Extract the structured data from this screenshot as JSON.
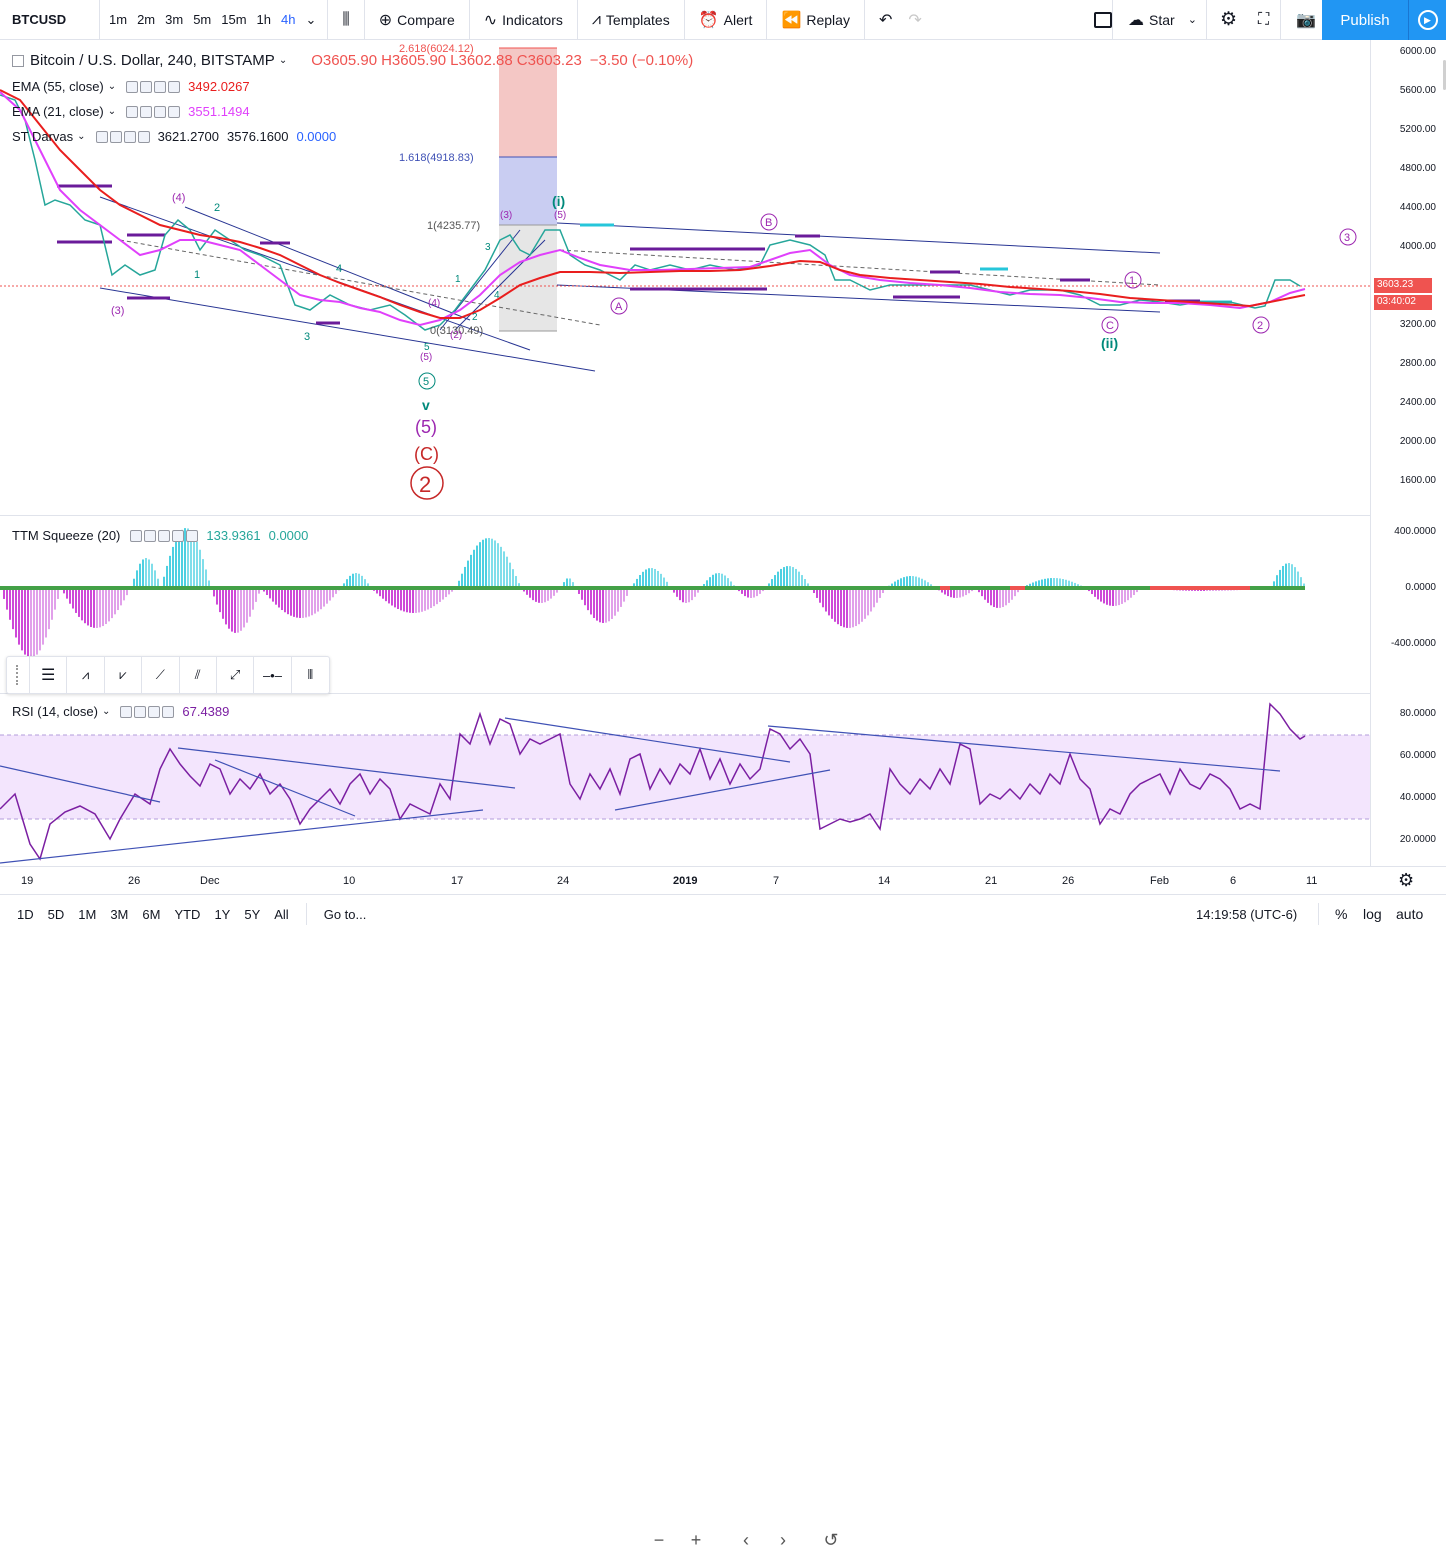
{
  "toolbar": {
    "symbol": "BTCUSD",
    "timeframes": [
      "1m",
      "2m",
      "3m",
      "5m",
      "15m",
      "1h",
      "4h"
    ],
    "active_timeframe": "4h",
    "compare": "Compare",
    "indicators": "Indicators",
    "templates": "Templates",
    "alert": "Alert",
    "replay": "Replay",
    "star": "Star",
    "publish": "Publish"
  },
  "main_legend": {
    "title": "Bitcoin / U.S. Dollar, 240, BITSTAMP",
    "open": "O3605.90",
    "high": "H3605.90",
    "low": "L3602.88",
    "close": "C3603.23",
    "change": "−3.50 (−0.10%)",
    "ema55_label": "EMA (55, close)",
    "ema55_value": "3492.0267",
    "ema21_label": "EMA (21, close)",
    "ema21_value": "3551.1494",
    "darvas_label": "ST Darvas",
    "darvas_v1": "3621.2700",
    "darvas_v2": "3576.1600",
    "darvas_v3": "0.0000"
  },
  "price_axis": {
    "labels": [
      "6000.00",
      "5600.00",
      "5200.00",
      "4800.00",
      "4400.00",
      "4000.00",
      "3603.23",
      "03:40:02",
      "3200.00",
      "2800.00",
      "2400.00",
      "2000.00",
      "1600.00"
    ],
    "current_price": "3603.23",
    "countdown": "03:40:02"
  },
  "fib": {
    "l1": "2.618(6024.12)",
    "l2": "1.618(4918.83)",
    "l3": "1(4235.77)",
    "l4": "0(3130.49)"
  },
  "waves": {
    "i": "(i)",
    "ii": "(ii)",
    "five_circle": "5",
    "v": "v",
    "five_paren": "(5)",
    "c_paren": "(C)",
    "two_circle": "2",
    "b": "B",
    "a": "A",
    "c": "C",
    "three": "3",
    "one": "1",
    "four_paren": "(4)",
    "three_paren": "(3)",
    "small_2": "2",
    "small_1": "1",
    "small_3": "3",
    "small_4": "4",
    "small_5": "5",
    "paren_5": "(5)",
    "paren_3": "(3)",
    "paren_2": "(2)",
    "paren_4": "(4)"
  },
  "ttm": {
    "label": "TTM Squeeze (20)",
    "v1": "133.9361",
    "v2": "0.0000",
    "axis": [
      "400.0000",
      "0.0000",
      "-400.0000"
    ]
  },
  "rsi": {
    "label": "RSI (14, close)",
    "value": "67.4389",
    "axis": [
      "80.0000",
      "60.0000",
      "40.0000",
      "20.0000"
    ]
  },
  "dates": [
    "19",
    "26",
    "Dec",
    "10",
    "17",
    "24",
    "2019",
    "7",
    "14",
    "21",
    "26",
    "Feb",
    "6",
    "11"
  ],
  "range": {
    "buttons": [
      "1D",
      "5D",
      "1M",
      "3M",
      "6M",
      "YTD",
      "1Y",
      "5Y",
      "All"
    ],
    "goto": "Go to...",
    "time": "14:19:58 (UTC-6)",
    "percent": "%",
    "log": "log",
    "auto": "auto"
  },
  "colors": {
    "accent": "#2196f3",
    "ema55": "#e91e1e",
    "ema21": "#e040fb",
    "up": "#26a69a",
    "down": "#ef5350",
    "darvas": "#6a1b9a",
    "rsi_band": "#f3e5fd"
  }
}
